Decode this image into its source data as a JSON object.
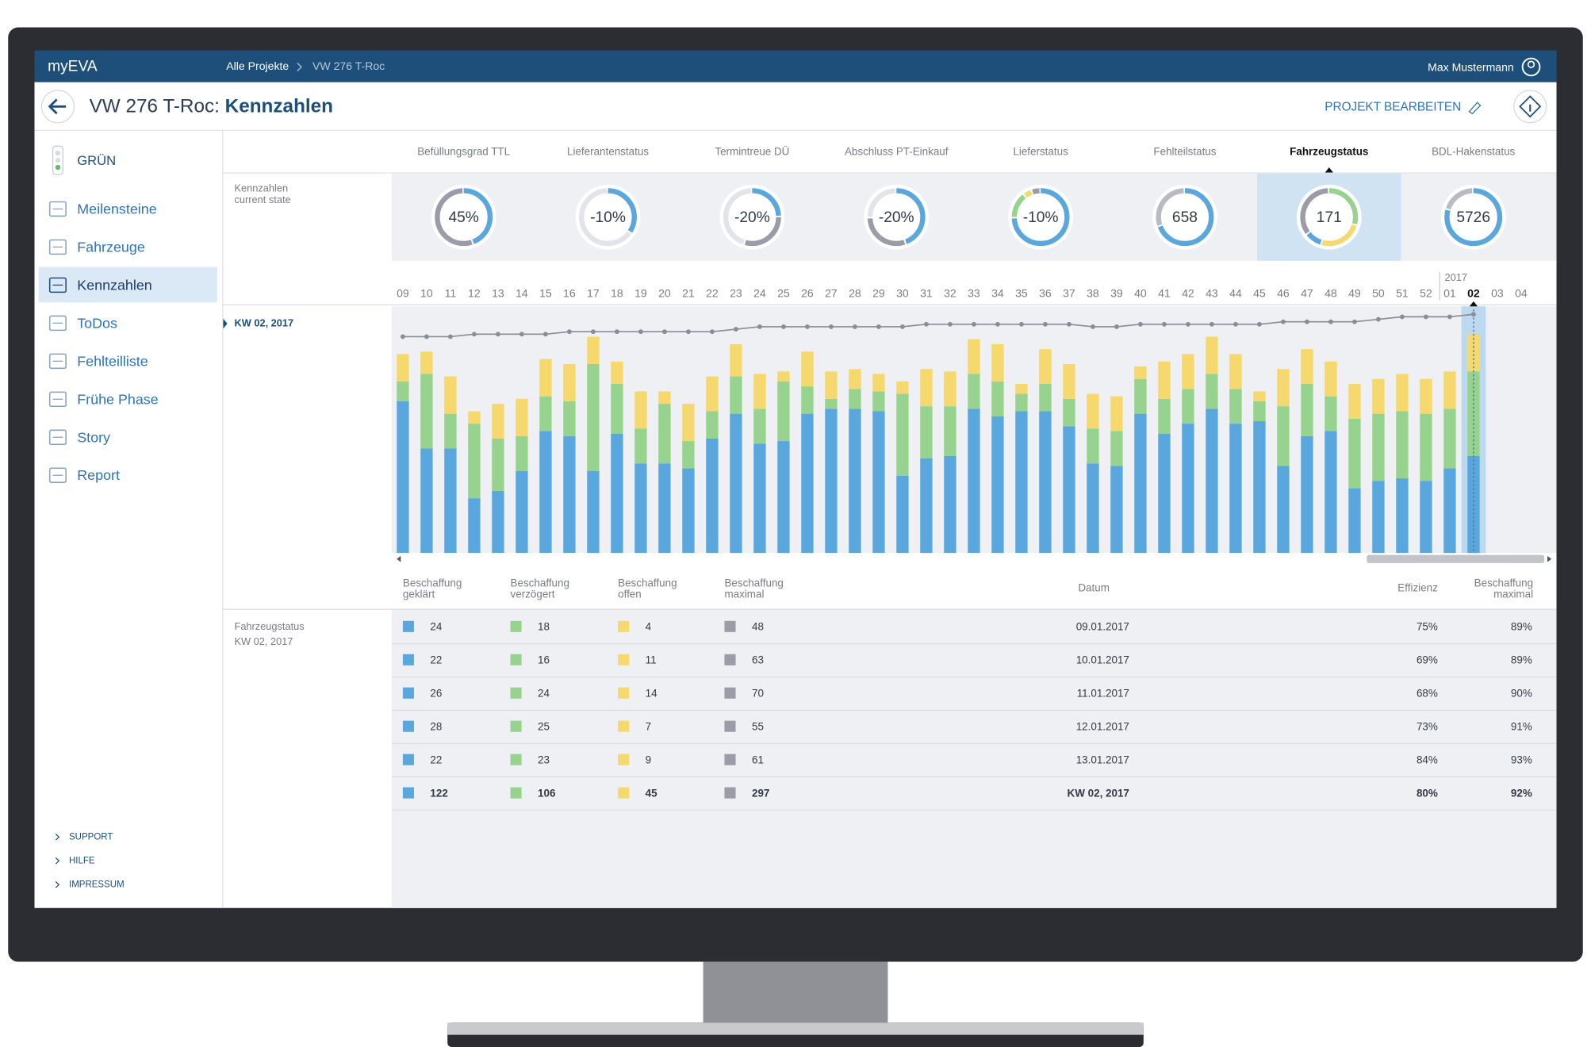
{
  "header": {
    "brand": "myEVA",
    "breadcrumb": [
      "Alle Projekte",
      "VW 276 T-Roc"
    ],
    "user": "Max Mustermann"
  },
  "title_bar": {
    "project": "VW 276 T-Roc:",
    "page": "Kennzahlen",
    "edit": "PROJEKT BEARBEITEN"
  },
  "sidebar": {
    "status": "GRÜN",
    "selected": 2,
    "nav": [
      "Meilensteine",
      "Fahrzeuge",
      "Kennzahlen",
      "ToDos",
      "Fehlteilliste",
      "Frühe Phase",
      "Story",
      "Report"
    ],
    "footer": [
      "SUPPORT",
      "HILFE",
      "IMPRESSUM"
    ]
  },
  "kpis": {
    "row_label": "Kennzahlen current state",
    "selected": 6,
    "items": [
      {
        "label": "Befüllungsgrad TTL",
        "value": "45%",
        "ring": [
          {
            "color": "#5aa7dd",
            "value": 45
          },
          {
            "color": "#9a9ca8",
            "value": 55
          }
        ]
      },
      {
        "label": "Lieferantenstatus",
        "value": "-10%",
        "ring": [
          {
            "color": "#5aa7dd",
            "value": 35
          },
          {
            "color": "#e2e4e9",
            "value": 65
          }
        ]
      },
      {
        "label": "Termintreue DÜ",
        "value": "-20%",
        "ring": [
          {
            "color": "#5aa7dd",
            "value": 25
          },
          {
            "color": "#9a9ca8",
            "value": 30
          },
          {
            "color": "#e2e4e9",
            "value": 45
          }
        ]
      },
      {
        "label": "Abschluss PT-Einkauf",
        "value": "-20%",
        "ring": [
          {
            "color": "#5aa7dd",
            "value": 45
          },
          {
            "color": "#9a9ca8",
            "value": 30
          },
          {
            "color": "#e2e4e9",
            "value": 25
          }
        ]
      },
      {
        "label": "Lieferstatus",
        "value": "-10%",
        "ring": [
          {
            "color": "#5aa7dd",
            "value": 75
          },
          {
            "color": "#97d38f",
            "value": 15
          },
          {
            "color": "#f5d96e",
            "value": 5
          },
          {
            "color": "#9a9ca8",
            "value": 5
          }
        ]
      },
      {
        "label": "Fehlteilstatus",
        "value": "658",
        "ring": [
          {
            "color": "#5aa7dd",
            "value": 70
          },
          {
            "color": "#b9bbc3",
            "value": 30
          }
        ]
      },
      {
        "label": "Fahrzeugstatus",
        "value": "171",
        "ring": [
          {
            "color": "#97d38f",
            "value": 30
          },
          {
            "color": "#f5d96e",
            "value": 25
          },
          {
            "color": "#5aa7dd",
            "value": 10
          },
          {
            "color": "#9a9ca8",
            "value": 35
          }
        ]
      },
      {
        "label": "BDL-Hakenstatus",
        "value": "5726",
        "ring": [
          {
            "color": "#5aa7dd",
            "value": 80
          },
          {
            "color": "#b9bbc3",
            "value": 20
          }
        ]
      }
    ]
  },
  "chart_data": {
    "type": "bar",
    "stacked": true,
    "selected_label": "KW 02, 2017",
    "selected_index": 45,
    "year_label": "2017",
    "categories": [
      "09",
      "10",
      "11",
      "12",
      "13",
      "14",
      "15",
      "16",
      "17",
      "18",
      "19",
      "20",
      "21",
      "22",
      "23",
      "24",
      "25",
      "26",
      "27",
      "28",
      "29",
      "30",
      "31",
      "32",
      "33",
      "34",
      "35",
      "36",
      "37",
      "38",
      "39",
      "40",
      "41",
      "42",
      "43",
      "44",
      "45",
      "46",
      "47",
      "48",
      "49",
      "50",
      "51",
      "52",
      "01",
      "02",
      "03",
      "04"
    ],
    "ylim": [
      0,
      100
    ],
    "series": [
      {
        "color": "#5aa7dd",
        "values": [
          61,
          42,
          42,
          22,
          25,
          33,
          49,
          47,
          33,
          48,
          36,
          36,
          34,
          46,
          56,
          44,
          45,
          56,
          58,
          58,
          57,
          31,
          38,
          39,
          58,
          55,
          57,
          57,
          51,
          36,
          35,
          56,
          48,
          52,
          58,
          52,
          53,
          35,
          47,
          49,
          26,
          29,
          30,
          29,
          34,
          39,
          null,
          null
        ]
      },
      {
        "color": "#97d38f",
        "values": [
          8,
          30,
          14,
          30,
          21,
          14,
          14,
          14,
          43,
          20,
          14,
          24,
          11,
          11,
          15,
          14,
          24,
          11,
          4,
          8,
          8,
          33,
          21,
          20,
          14,
          14,
          7,
          11,
          11,
          14,
          14,
          14,
          14,
          14,
          14,
          14,
          8,
          24,
          21,
          14,
          28,
          27,
          27,
          27,
          24,
          34,
          null,
          null
        ]
      },
      {
        "color": "#f5d96e",
        "values": [
          11,
          9,
          15,
          5,
          14,
          15,
          15,
          15,
          11,
          9,
          15,
          5,
          15,
          14,
          13,
          14,
          4,
          14,
          11,
          8,
          7,
          5,
          15,
          14,
          14,
          15,
          4,
          14,
          14,
          14,
          14,
          5,
          15,
          14,
          15,
          14,
          4,
          15,
          14,
          14,
          14,
          14,
          15,
          14,
          15,
          15,
          null,
          null
        ]
      }
    ],
    "line": {
      "color": "#8a8c96",
      "values": [
        87,
        87,
        87,
        88,
        88,
        88,
        88,
        89,
        89,
        89,
        89,
        89,
        89,
        89,
        90,
        91,
        91,
        91,
        91,
        91,
        91,
        91,
        92,
        92,
        92,
        92,
        92,
        92,
        92,
        91,
        91,
        92,
        92,
        92,
        92,
        92,
        92,
        93,
        93,
        93,
        93,
        94,
        95,
        95,
        95,
        96,
        null,
        null
      ]
    }
  },
  "table": {
    "row_label": "Fahrzeugstatus",
    "row_sublabel": "KW 02, 2017",
    "columns": [
      "Beschaffung geklärt",
      "Beschaffung verzögert",
      "Beschaffung offen",
      "Beschaffung maximal",
      "Datum",
      "Effizienz",
      "Beschaffung maximal"
    ],
    "colors": [
      "#5aa7dd",
      "#97d38f",
      "#f5d96e",
      "#9a9ca8"
    ],
    "rows": [
      [
        24,
        18,
        4,
        48,
        "09.01.2017",
        "75%",
        "89%"
      ],
      [
        22,
        16,
        11,
        63,
        "10.01.2017",
        "69%",
        "89%"
      ],
      [
        26,
        24,
        14,
        70,
        "11.01.2017",
        "68%",
        "90%"
      ],
      [
        28,
        25,
        7,
        55,
        "12.01.2017",
        "73%",
        "91%"
      ],
      [
        22,
        23,
        9,
        61,
        "13.01.2017",
        "84%",
        "93%"
      ]
    ],
    "total": [
      122,
      106,
      45,
      297,
      "KW 02, 2017",
      "80%",
      "92%"
    ]
  }
}
